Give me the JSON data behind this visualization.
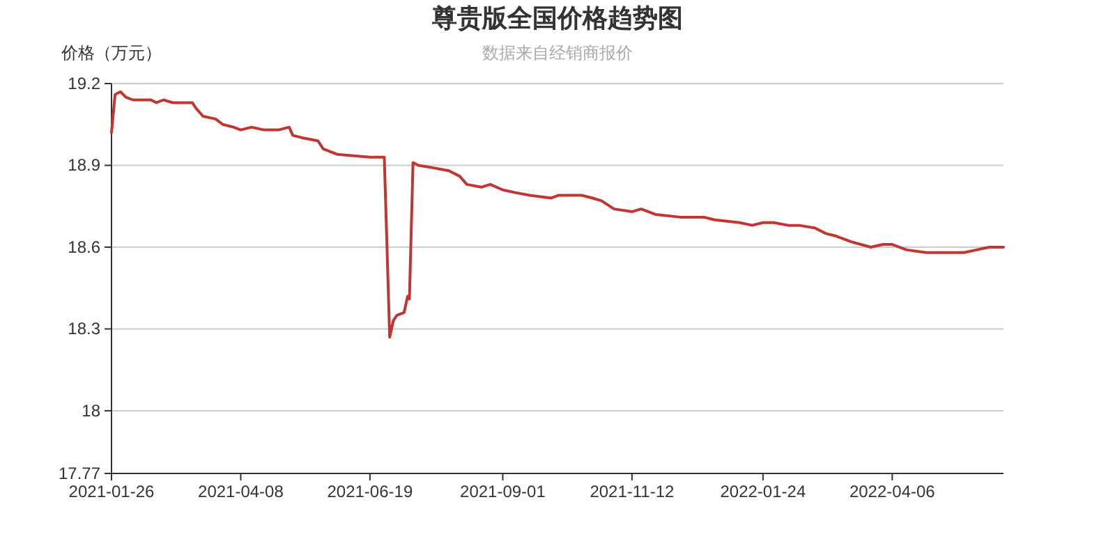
{
  "chart_data": {
    "type": "line",
    "title": "尊贵版全国价格趋势图",
    "subtitle": "数据来自经销商报价",
    "ylabel": "价格（万元）",
    "x": [
      "2021-01-26",
      "2021-01-28",
      "2021-01-31",
      "2021-02-03",
      "2021-02-07",
      "2021-02-17",
      "2021-02-20",
      "2021-02-24",
      "2021-03-01",
      "2021-03-12",
      "2021-03-14",
      "2021-03-18",
      "2021-03-25",
      "2021-03-29",
      "2021-04-04",
      "2021-04-08",
      "2021-04-14",
      "2021-04-21",
      "2021-04-29",
      "2021-05-05",
      "2021-05-07",
      "2021-05-13",
      "2021-05-21",
      "2021-05-24",
      "2021-06-01",
      "2021-06-19",
      "2021-06-27",
      "2021-06-30",
      "2021-07-02",
      "2021-07-04",
      "2021-07-08",
      "2021-07-10",
      "2021-07-11",
      "2021-07-13",
      "2021-07-16",
      "2021-07-25",
      "2021-08-02",
      "2021-08-08",
      "2021-08-12",
      "2021-08-20",
      "2021-08-25",
      "2021-09-01",
      "2021-09-08",
      "2021-09-16",
      "2021-09-28",
      "2021-10-02",
      "2021-10-09",
      "2021-10-15",
      "2021-10-21",
      "2021-10-26",
      "2021-11-02",
      "2021-11-12",
      "2021-11-17",
      "2021-11-25",
      "2021-12-09",
      "2021-12-22",
      "2021-12-28",
      "2022-01-11",
      "2022-01-18",
      "2022-01-24",
      "2022-01-30",
      "2022-02-07",
      "2022-02-13",
      "2022-02-22",
      "2022-02-28",
      "2022-03-06",
      "2022-03-14",
      "2022-03-25",
      "2022-04-01",
      "2022-04-06",
      "2022-04-14",
      "2022-04-25",
      "2022-05-11",
      "2022-05-16",
      "2022-05-23",
      "2022-05-30",
      "2022-06-07"
    ],
    "series": [
      {
        "color": "#c23531",
        "values": [
          19.02,
          19.16,
          19.17,
          19.15,
          19.14,
          19.14,
          19.13,
          19.14,
          19.13,
          19.13,
          19.11,
          19.08,
          19.07,
          19.05,
          19.04,
          19.03,
          19.04,
          19.03,
          19.03,
          19.04,
          19.01,
          19.0,
          18.99,
          18.96,
          18.94,
          18.93,
          18.93,
          18.27,
          18.33,
          18.35,
          18.36,
          18.42,
          18.41,
          18.91,
          18.9,
          18.89,
          18.88,
          18.86,
          18.83,
          18.82,
          18.83,
          18.81,
          18.8,
          18.79,
          18.78,
          18.79,
          18.79,
          18.79,
          18.78,
          18.77,
          18.74,
          18.73,
          18.74,
          18.72,
          18.71,
          18.71,
          18.7,
          18.69,
          18.68,
          18.69,
          18.69,
          18.68,
          18.68,
          18.67,
          18.65,
          18.64,
          18.62,
          18.6,
          18.61,
          18.61,
          18.59,
          18.58,
          18.58,
          18.58,
          18.59,
          18.6,
          18.6
        ]
      }
    ],
    "xlim": [
      "2021-01-26",
      "2022-06-07"
    ],
    "xticks": [
      "2021-01-26",
      "2021-04-08",
      "2021-06-19",
      "2021-09-01",
      "2021-11-12",
      "2022-01-24",
      "2022-04-06"
    ],
    "ylim": [
      17.77,
      19.2
    ],
    "yticks": [
      17.77,
      18,
      18.3,
      18.6,
      18.9,
      19.2
    ],
    "grid": "y"
  }
}
